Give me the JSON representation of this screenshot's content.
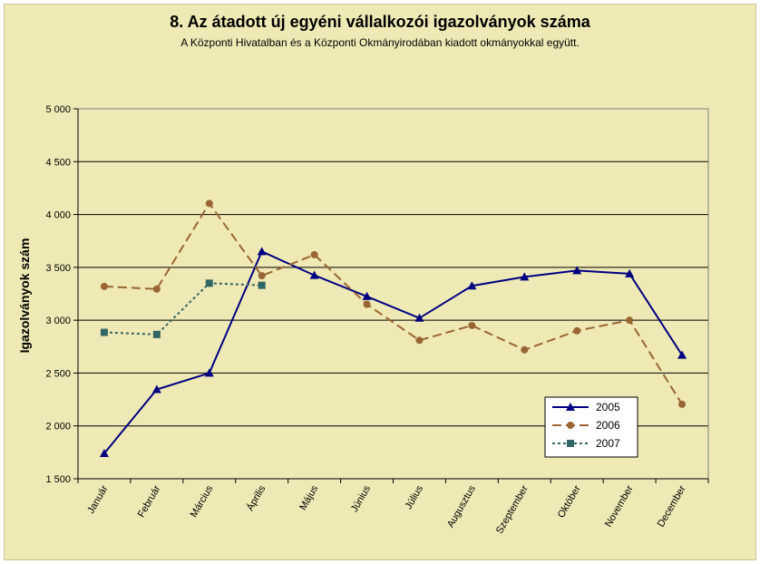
{
  "chart_data": {
    "type": "line",
    "title": "8. Az átadott új egyéni vállalkozói  igazolványok száma",
    "subtitle": "A Központi Hivatalban és a Központi Okmányirodában kiadott okmányokkal együtt.",
    "ylabel": "Igazolványok szám",
    "xlabel": "",
    "ylim": [
      1500,
      5000
    ],
    "yticks": [
      1500,
      2000,
      2500,
      3000,
      3500,
      4000,
      4500,
      5000
    ],
    "ytick_labels": [
      "1 500",
      "2 000",
      "2 500",
      "3 000",
      "3 500",
      "4 000",
      "4 500",
      "5 000"
    ],
    "categories": [
      "Január",
      "Február",
      "Március",
      "Április",
      "Május",
      "Június",
      "Július",
      "Augusztus",
      "Szeptember",
      "Október",
      "November",
      "December"
    ],
    "grid": "horizontal",
    "legend_position": "bottom-right",
    "series": [
      {
        "name": "2005",
        "color": "#000080",
        "line_style": "solid",
        "marker": "triangle",
        "values": [
          1740,
          2345,
          2500,
          3650,
          3425,
          3225,
          3020,
          3325,
          3410,
          3470,
          3440,
          2670
        ]
      },
      {
        "name": "2006",
        "color": "#996633",
        "line_style": "dashed",
        "marker": "circle",
        "values": [
          3320,
          3295,
          4105,
          3420,
          3620,
          3150,
          2810,
          2950,
          2720,
          2900,
          3000,
          2205
        ]
      },
      {
        "name": "2007",
        "color": "#336666",
        "line_style": "dotted",
        "marker": "square",
        "values": [
          2885,
          2865,
          3350,
          3330,
          null,
          null,
          null,
          null,
          null,
          null,
          null,
          null
        ]
      }
    ]
  }
}
